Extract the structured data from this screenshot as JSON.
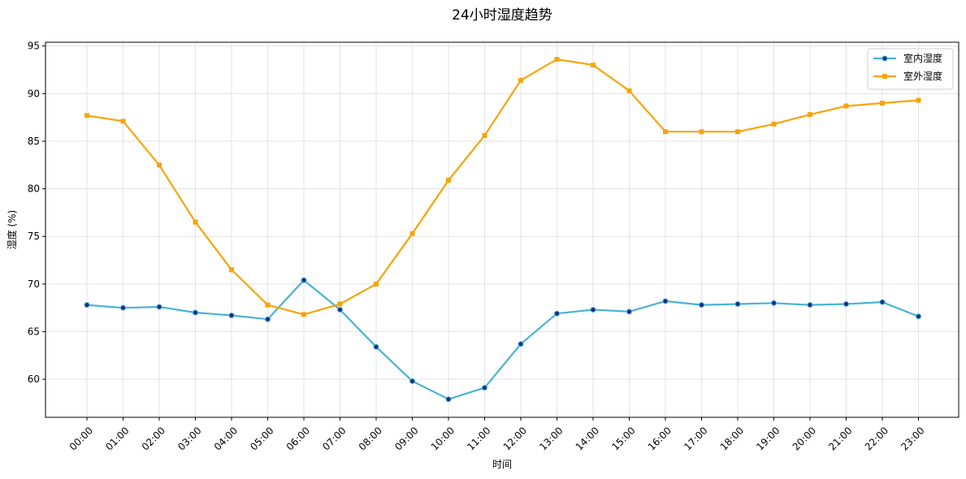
{
  "chart_data": {
    "type": "line",
    "title": "24小时湿度趋势",
    "xlabel": "时间",
    "ylabel": "湿度 (%)",
    "categories": [
      "00:00",
      "01:00",
      "02:00",
      "03:00",
      "04:00",
      "05:00",
      "06:00",
      "07:00",
      "08:00",
      "09:00",
      "10:00",
      "11:00",
      "12:00",
      "13:00",
      "14:00",
      "15:00",
      "16:00",
      "17:00",
      "18:00",
      "19:00",
      "20:00",
      "21:00",
      "22:00",
      "23:00"
    ],
    "ylim": [
      56,
      95.4
    ],
    "yticks": [
      60,
      65,
      70,
      75,
      80,
      85,
      90,
      95
    ],
    "grid": true,
    "legend_position": "top-right",
    "series": [
      {
        "name": "室内湿度",
        "color": "#4ab3d3",
        "marker_color": "#1a2b8a",
        "marker": "circle",
        "values": [
          67.8,
          67.5,
          67.6,
          67.0,
          66.7,
          66.3,
          70.4,
          67.3,
          63.4,
          59.8,
          57.9,
          59.1,
          63.7,
          66.9,
          67.3,
          67.1,
          68.2,
          67.8,
          67.9,
          68.0,
          67.8,
          67.9,
          68.1,
          66.6
        ]
      },
      {
        "name": "室外湿度",
        "color": "#f5a50a",
        "marker_color": "#f5a50a",
        "marker": "square",
        "values": [
          87.7,
          87.1,
          82.5,
          76.5,
          71.5,
          67.8,
          66.8,
          67.9,
          70.0,
          75.3,
          80.9,
          85.6,
          91.4,
          93.6,
          93.0,
          90.3,
          86.0,
          86.0,
          86.0,
          86.8,
          87.8,
          88.7,
          89.0,
          89.3
        ]
      }
    ]
  }
}
